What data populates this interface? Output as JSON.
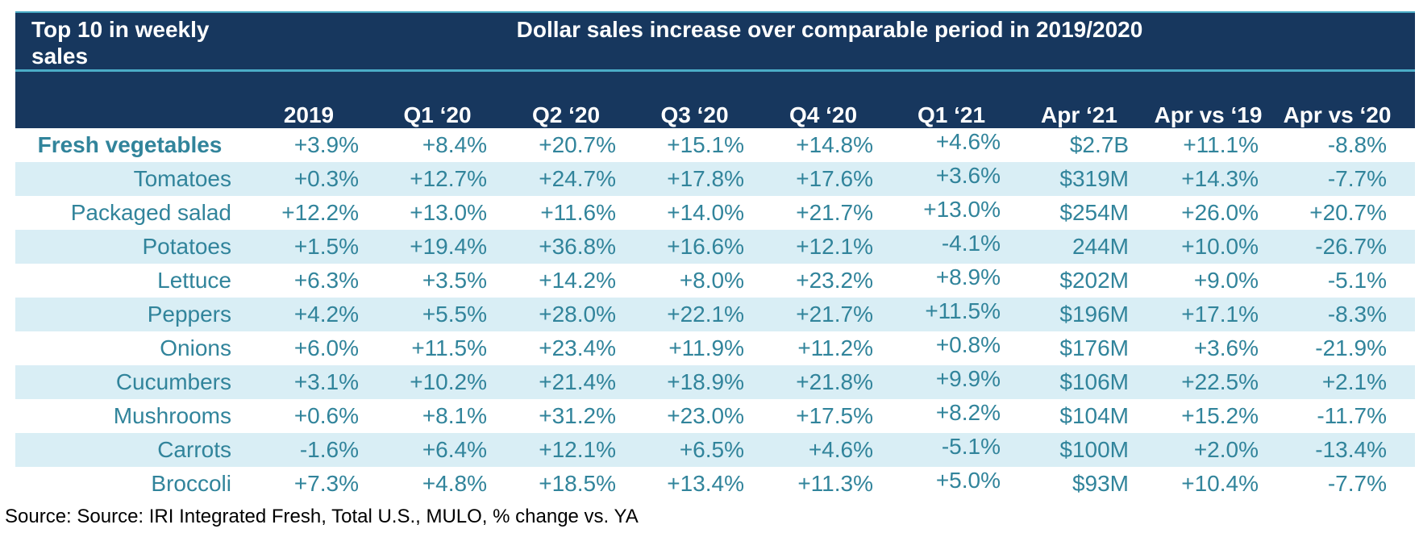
{
  "corner_title": "Top 10 in weekly sales",
  "span_title": "Dollar sales increase over comparable period in 2019/2020",
  "columns": [
    "2019",
    "Q1 ‘20",
    "Q2 ‘20",
    "Q3 ‘20",
    "Q4 ‘20",
    "Q1 ‘21",
    "Apr ‘21",
    "Apr vs ‘19",
    "Apr vs ‘20"
  ],
  "rows": [
    {
      "label": "Fresh vegetables",
      "values": [
        "+3.9%",
        "+8.4%",
        "+20.7%",
        "+15.1%",
        "+14.8%",
        "+4.6%",
        "$2.7B",
        "+11.1%",
        "-8.8%"
      ]
    },
    {
      "label": "Tomatoes",
      "values": [
        "+0.3%",
        "+12.7%",
        "+24.7%",
        "+17.8%",
        "+17.6%",
        "+3.6%",
        "$319M",
        "+14.3%",
        "-7.7%"
      ]
    },
    {
      "label": "Packaged salad",
      "values": [
        "+12.2%",
        "+13.0%",
        "+11.6%",
        "+14.0%",
        "+21.7%",
        "+13.0%",
        "$254M",
        "+26.0%",
        "+20.7%"
      ]
    },
    {
      "label": "Potatoes",
      "values": [
        "+1.5%",
        "+19.4%",
        "+36.8%",
        "+16.6%",
        "+12.1%",
        "-4.1%",
        "244M",
        "+10.0%",
        "-26.7%"
      ]
    },
    {
      "label": "Lettuce",
      "values": [
        "+6.3%",
        "+3.5%",
        "+14.2%",
        "+8.0%",
        "+23.2%",
        "+8.9%",
        "$202M",
        "+9.0%",
        "-5.1%"
      ]
    },
    {
      "label": "Peppers",
      "values": [
        "+4.2%",
        "+5.5%",
        "+28.0%",
        "+22.1%",
        "+21.7%",
        "+11.5%",
        "$196M",
        "+17.1%",
        "-8.3%"
      ]
    },
    {
      "label": "Onions",
      "values": [
        "+6.0%",
        "+11.5%",
        "+23.4%",
        "+11.9%",
        "+11.2%",
        "+0.8%",
        "$176M",
        "+3.6%",
        "-21.9%"
      ]
    },
    {
      "label": "Cucumbers",
      "values": [
        "+3.1%",
        "+10.2%",
        "+21.4%",
        "+18.9%",
        "+21.8%",
        "+9.9%",
        "$106M",
        "+22.5%",
        "+2.1%"
      ]
    },
    {
      "label": "Mushrooms",
      "values": [
        "+0.6%",
        "+8.1%",
        "+31.2%",
        "+23.0%",
        "+17.5%",
        "+8.2%",
        "$104M",
        "+15.2%",
        "-11.7%"
      ]
    },
    {
      "label": "Carrots",
      "values": [
        "-1.6%",
        "+6.4%",
        "+12.1%",
        "+6.5%",
        "+4.6%",
        "-5.1%",
        "$100M",
        "+2.0%",
        "-13.4%"
      ]
    },
    {
      "label": "Broccoli",
      "values": [
        "+7.3%",
        "+4.8%",
        "+18.5%",
        "+13.4%",
        "+11.3%",
        "+5.0%",
        "$93M",
        "+10.4%",
        "-7.7%"
      ]
    }
  ],
  "source": "Source: Source: IRI Integrated Fresh, Total U.S., MULO, % change vs. YA",
  "colors": {
    "header_bg": "#17375e",
    "accent_line": "#4bacc6",
    "text_teal": "#31849b",
    "stripe": "#d9eef5"
  },
  "chart_data": {
    "type": "table",
    "title": "Dollar sales increase over comparable period in 2019/2020",
    "row_header": "Top 10 in weekly sales",
    "columns": [
      "2019",
      "Q1 ‘20",
      "Q2 ‘20",
      "Q3 ‘20",
      "Q4 ‘20",
      "Q1 ‘21",
      "Apr ‘21",
      "Apr vs ‘19",
      "Apr vs ‘20"
    ]
  }
}
